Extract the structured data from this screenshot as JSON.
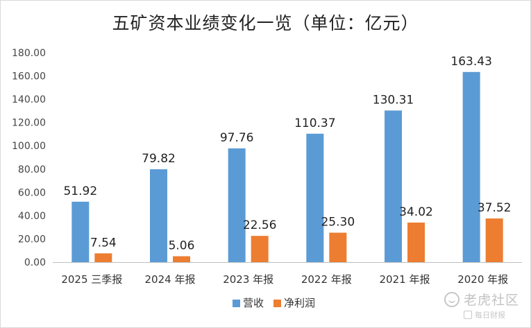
{
  "chart_data": {
    "type": "bar",
    "title": "五矿资本业绩变化一览（单位：亿元）",
    "categories": [
      "2025 三季报",
      "2024 年报",
      "2023 年报",
      "2022 年报",
      "2021 年报",
      "2020 年报"
    ],
    "series": [
      {
        "name": "营收",
        "color": "#5b9bd5",
        "values": [
          51.92,
          79.82,
          97.76,
          110.37,
          130.31,
          163.43
        ]
      },
      {
        "name": "净利润",
        "color": "#ed7d31",
        "values": [
          7.54,
          5.06,
          22.56,
          25.3,
          34.02,
          37.52
        ]
      }
    ],
    "data_labels": [
      [
        "51.92",
        "79.82",
        "97.76",
        "110.37",
        "130.31",
        "163.43"
      ],
      [
        "7.54",
        "5.06",
        "22.56",
        "25.30",
        "34.02",
        "37.52"
      ]
    ],
    "yticks": [
      "0.00",
      "20.00",
      "40.00",
      "60.00",
      "80.00",
      "100.00",
      "120.00",
      "140.00",
      "160.00",
      "180.00"
    ],
    "ylim": [
      0,
      180
    ],
    "grid": false,
    "legend": "bottom-center"
  },
  "watermark": {
    "brand": "老虎社区",
    "sub": "每日财报"
  }
}
